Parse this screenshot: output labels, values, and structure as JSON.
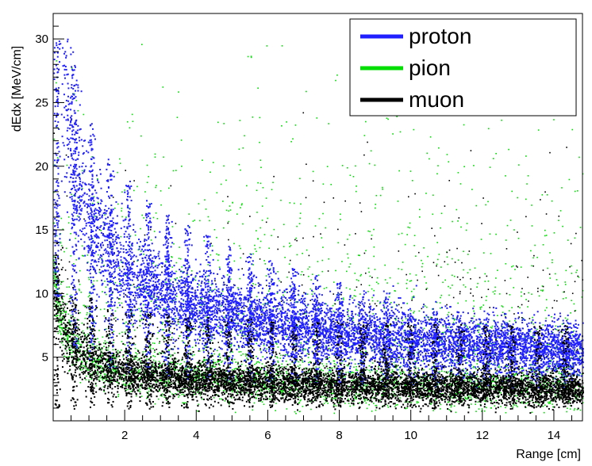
{
  "chart_data": {
    "type": "scatter",
    "title": "",
    "xlabel": "Range [cm]",
    "ylabel": "dEdx [MeV/cm]",
    "xlim": [
      0,
      14.8
    ],
    "ylim": [
      0,
      32
    ],
    "x_ticks": [
      2,
      4,
      6,
      8,
      10,
      12,
      14
    ],
    "y_ticks": [
      5,
      10,
      15,
      20,
      25,
      30
    ],
    "x_tick_labels": [
      "2",
      "4",
      "6",
      "8",
      "10",
      "12",
      "14"
    ],
    "y_tick_labels": [
      "5",
      "10",
      "15",
      "20",
      "25",
      "30"
    ],
    "grid": false,
    "legend": "top-right",
    "series": [
      {
        "name": "proton",
        "color": "#1f1fff",
        "description_points": [
          [
            0.2,
            30
          ],
          [
            1.0,
            30
          ],
          [
            2.0,
            22
          ],
          [
            3.0,
            16
          ],
          [
            4.0,
            12.5
          ],
          [
            6.0,
            10
          ],
          [
            8.0,
            8.5
          ],
          [
            10.0,
            7.2
          ],
          [
            12.0,
            6.4
          ],
          [
            14.8,
            5.5
          ]
        ]
      },
      {
        "name": "pion",
        "color": "#00dd00",
        "description_points": [
          [
            0.2,
            30
          ],
          [
            2.0,
            8
          ],
          [
            5.0,
            4
          ],
          [
            8.0,
            3.2
          ],
          [
            14.8,
            2.6
          ]
        ]
      },
      {
        "name": "muon",
        "color": "#000000",
        "description_points": [
          [
            0.2,
            30
          ],
          [
            2.0,
            6
          ],
          [
            5.0,
            3.6
          ],
          [
            8.0,
            3.0
          ],
          [
            14.8,
            2.4
          ]
        ]
      }
    ]
  }
}
